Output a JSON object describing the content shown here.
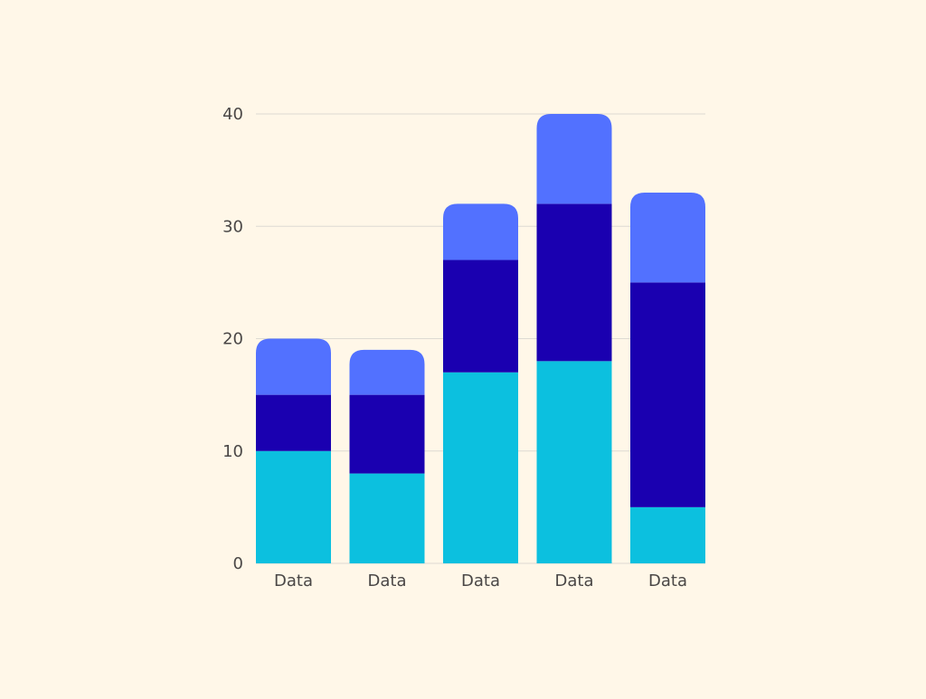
{
  "chart_data": {
    "type": "bar",
    "stacked": true,
    "categories": [
      "Data",
      "Data",
      "Data",
      "Data",
      "Data"
    ],
    "series": [
      {
        "values": [
          10,
          8,
          17,
          18,
          5
        ],
        "color": "#0CC0DF"
      },
      {
        "values": [
          5,
          7,
          10,
          14,
          20
        ],
        "color": "#1A00B0"
      },
      {
        "values": [
          5,
          4,
          5,
          8,
          8
        ],
        "color": "#5271FF"
      }
    ],
    "ylim": [
      0,
      40
    ],
    "yticks": [
      0,
      10,
      20,
      30,
      40
    ],
    "grid": true,
    "title": "",
    "xlabel": "",
    "ylabel": ""
  },
  "colors": {
    "background": "#FFF7E8",
    "grid": "#DEDAD2",
    "tick_text": "#4A4746"
  }
}
